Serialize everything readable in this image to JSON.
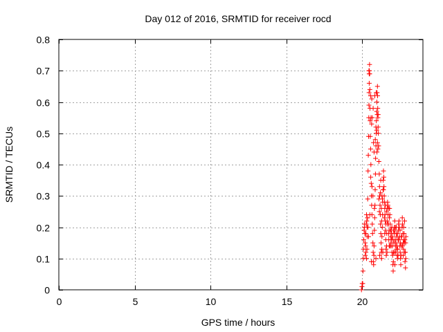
{
  "chart_data": {
    "type": "scatter",
    "title": "Day 012 of 2016, SRMTID for receiver rocd",
    "xlabel": "GPS time / hours",
    "ylabel": "SRMTID / TECUs",
    "xlim": [
      0,
      24
    ],
    "ylim": [
      0,
      0.8
    ],
    "xticks": [
      0,
      5,
      10,
      15,
      20
    ],
    "yticks": [
      0,
      0.1,
      0.2,
      0.3,
      0.4,
      0.5,
      0.6,
      0.7,
      0.8
    ],
    "ytick_labels": [
      "0",
      "0.1",
      "0.2",
      "0.3",
      "0.4",
      "0.5",
      "0.6",
      "0.7",
      "0.8"
    ],
    "grid": true,
    "marker": "+",
    "color": "#ff0000",
    "series": [
      {
        "name": "SRMTID",
        "points": [
          [
            19.95,
            0.0
          ],
          [
            19.98,
            0.01
          ],
          [
            20.0,
            0.02
          ],
          [
            20.03,
            0.02
          ],
          [
            20.05,
            0.06
          ],
          [
            20.07,
            0.1
          ],
          [
            20.08,
            0.13
          ],
          [
            20.1,
            0.16
          ],
          [
            20.12,
            0.19
          ],
          [
            20.14,
            0.21
          ],
          [
            20.15,
            0.2
          ],
          [
            20.17,
            0.18
          ],
          [
            20.19,
            0.15
          ],
          [
            20.2,
            0.11
          ],
          [
            20.22,
            0.14
          ],
          [
            20.24,
            0.18
          ],
          [
            20.26,
            0.21
          ],
          [
            20.28,
            0.24
          ],
          [
            20.3,
            0.22
          ],
          [
            20.32,
            0.2
          ],
          [
            20.33,
            0.17
          ],
          [
            20.35,
            0.23
          ],
          [
            20.36,
            0.29
          ],
          [
            20.38,
            0.38
          ],
          [
            20.4,
            0.43
          ],
          [
            20.42,
            0.49
          ],
          [
            20.43,
            0.55
          ],
          [
            20.44,
            0.59
          ],
          [
            20.45,
            0.63
          ],
          [
            20.46,
            0.66
          ],
          [
            20.47,
            0.7
          ],
          [
            20.48,
            0.72
          ],
          [
            20.49,
            0.69
          ],
          [
            20.5,
            0.64
          ],
          [
            20.51,
            0.58
          ],
          [
            20.52,
            0.54
          ],
          [
            20.53,
            0.49
          ],
          [
            20.55,
            0.45
          ],
          [
            20.57,
            0.4
          ],
          [
            20.59,
            0.34
          ],
          [
            20.6,
            0.3
          ],
          [
            20.62,
            0.27
          ],
          [
            20.64,
            0.24
          ],
          [
            20.66,
            0.21
          ],
          [
            20.68,
            0.18
          ],
          [
            20.7,
            0.15
          ],
          [
            20.72,
            0.12
          ],
          [
            20.73,
            0.09
          ],
          [
            20.75,
            0.08
          ],
          [
            20.77,
            0.11
          ],
          [
            20.78,
            0.14
          ],
          [
            20.8,
            0.19
          ],
          [
            20.82,
            0.23
          ],
          [
            20.84,
            0.27
          ],
          [
            20.85,
            0.32
          ],
          [
            20.87,
            0.37
          ],
          [
            20.88,
            0.42
          ],
          [
            20.9,
            0.46
          ],
          [
            20.92,
            0.5
          ],
          [
            20.93,
            0.54
          ],
          [
            20.95,
            0.57
          ],
          [
            20.96,
            0.6
          ],
          [
            20.98,
            0.63
          ],
          [
            21.0,
            0.65
          ],
          [
            21.01,
            0.62
          ],
          [
            21.02,
            0.58
          ],
          [
            21.03,
            0.55
          ],
          [
            21.05,
            0.52
          ],
          [
            21.06,
            0.5
          ],
          [
            21.08,
            0.46
          ],
          [
            21.1,
            0.41
          ],
          [
            21.12,
            0.37
          ],
          [
            21.14,
            0.33
          ],
          [
            21.15,
            0.3
          ],
          [
            21.17,
            0.27
          ],
          [
            21.19,
            0.24
          ],
          [
            21.2,
            0.21
          ],
          [
            21.22,
            0.18
          ],
          [
            21.24,
            0.15
          ],
          [
            21.25,
            0.12
          ],
          [
            21.27,
            0.1
          ],
          [
            21.29,
            0.13
          ],
          [
            21.3,
            0.17
          ],
          [
            21.32,
            0.2
          ],
          [
            21.34,
            0.24
          ],
          [
            21.35,
            0.28
          ],
          [
            21.37,
            0.32
          ],
          [
            21.38,
            0.35
          ],
          [
            21.4,
            0.38
          ],
          [
            21.42,
            0.36
          ],
          [
            21.43,
            0.33
          ],
          [
            21.45,
            0.3
          ],
          [
            21.47,
            0.28
          ],
          [
            21.48,
            0.26
          ],
          [
            21.5,
            0.24
          ],
          [
            21.52,
            0.22
          ],
          [
            21.54,
            0.19
          ],
          [
            21.55,
            0.16
          ],
          [
            21.57,
            0.13
          ],
          [
            21.58,
            0.11
          ],
          [
            21.6,
            0.14
          ],
          [
            21.62,
            0.18
          ],
          [
            21.64,
            0.22
          ],
          [
            21.65,
            0.26
          ],
          [
            21.67,
            0.28
          ],
          [
            21.69,
            0.27
          ],
          [
            21.7,
            0.24
          ],
          [
            21.72,
            0.21
          ],
          [
            21.74,
            0.18
          ],
          [
            21.75,
            0.16
          ],
          [
            21.77,
            0.19
          ],
          [
            21.79,
            0.23
          ],
          [
            21.8,
            0.26
          ],
          [
            21.82,
            0.24
          ],
          [
            21.84,
            0.21
          ],
          [
            21.85,
            0.19
          ],
          [
            21.87,
            0.17
          ],
          [
            21.89,
            0.15
          ],
          [
            21.9,
            0.14
          ],
          [
            21.92,
            0.16
          ],
          [
            21.94,
            0.18
          ],
          [
            21.95,
            0.2
          ],
          [
            21.97,
            0.17
          ],
          [
            21.99,
            0.14
          ],
          [
            22.0,
            0.11
          ],
          [
            22.02,
            0.08
          ],
          [
            22.04,
            0.06
          ],
          [
            22.05,
            0.09
          ],
          [
            22.07,
            0.12
          ],
          [
            22.09,
            0.15
          ],
          [
            22.1,
            0.18
          ],
          [
            22.12,
            0.2
          ],
          [
            22.14,
            0.22
          ],
          [
            22.15,
            0.19
          ],
          [
            22.17,
            0.16
          ],
          [
            22.19,
            0.14
          ],
          [
            22.2,
            0.12
          ],
          [
            22.22,
            0.15
          ],
          [
            22.24,
            0.18
          ],
          [
            22.25,
            0.2
          ],
          [
            22.27,
            0.17
          ],
          [
            22.29,
            0.14
          ],
          [
            22.3,
            0.11
          ],
          [
            22.32,
            0.1
          ],
          [
            22.34,
            0.13
          ],
          [
            22.36,
            0.16
          ],
          [
            22.38,
            0.19
          ],
          [
            22.4,
            0.21
          ],
          [
            22.42,
            0.22
          ],
          [
            22.44,
            0.2
          ],
          [
            22.46,
            0.17
          ],
          [
            22.48,
            0.14
          ],
          [
            22.5,
            0.12
          ],
          [
            22.52,
            0.1
          ],
          [
            22.54,
            0.08
          ],
          [
            22.56,
            0.11
          ],
          [
            22.58,
            0.14
          ],
          [
            22.6,
            0.17
          ],
          [
            22.62,
            0.2
          ],
          [
            22.64,
            0.23
          ],
          [
            22.66,
            0.21
          ],
          [
            22.68,
            0.18
          ],
          [
            22.7,
            0.15
          ],
          [
            22.72,
            0.13
          ],
          [
            22.74,
            0.16
          ],
          [
            22.76,
            0.18
          ],
          [
            22.78,
            0.15
          ],
          [
            22.8,
            0.12
          ],
          [
            22.82,
            0.09
          ],
          [
            22.84,
            0.12
          ],
          [
            22.86,
            0.15
          ],
          [
            22.88,
            0.17
          ],
          [
            20.44,
            0.7
          ],
          [
            20.46,
            0.69
          ],
          [
            20.58,
            0.55
          ],
          [
            20.62,
            0.53
          ],
          [
            20.66,
            0.55
          ],
          [
            20.74,
            0.47
          ],
          [
            20.78,
            0.44
          ],
          [
            20.86,
            0.48
          ],
          [
            20.9,
            0.52
          ],
          [
            20.97,
            0.44
          ],
          [
            21.03,
            0.45
          ],
          [
            20.55,
            0.62
          ],
          [
            20.63,
            0.61
          ],
          [
            20.72,
            0.58
          ],
          [
            20.82,
            0.62
          ],
          [
            20.92,
            0.63
          ],
          [
            21.05,
            0.56
          ],
          [
            20.35,
            0.23
          ],
          [
            20.38,
            0.2
          ],
          [
            20.42,
            0.17
          ],
          [
            20.5,
            0.24
          ],
          [
            20.56,
            0.36
          ],
          [
            20.64,
            0.33
          ],
          [
            20.7,
            0.3
          ],
          [
            20.8,
            0.26
          ],
          [
            21.1,
            0.29
          ],
          [
            21.13,
            0.25
          ],
          [
            21.2,
            0.31
          ],
          [
            21.26,
            0.26
          ],
          [
            21.33,
            0.29
          ],
          [
            21.4,
            0.32
          ],
          [
            21.46,
            0.23
          ],
          [
            21.53,
            0.27
          ],
          [
            21.6,
            0.25
          ],
          [
            21.68,
            0.21
          ],
          [
            21.75,
            0.26
          ],
          [
            21.83,
            0.14
          ],
          [
            21.9,
            0.19
          ],
          [
            22.03,
            0.16
          ],
          [
            22.11,
            0.12
          ],
          [
            22.18,
            0.2
          ],
          [
            22.26,
            0.13
          ],
          [
            22.33,
            0.18
          ],
          [
            22.41,
            0.16
          ],
          [
            22.49,
            0.19
          ],
          [
            22.57,
            0.17
          ],
          [
            22.65,
            0.14
          ],
          [
            22.73,
            0.2
          ],
          [
            22.81,
            0.16
          ],
          [
            22.87,
            0.1
          ],
          [
            20.24,
            0.12
          ],
          [
            20.28,
            0.1
          ],
          [
            20.31,
            0.13
          ],
          [
            20.6,
            0.09
          ],
          [
            20.9,
            0.1
          ],
          [
            21.15,
            0.11
          ],
          [
            21.36,
            0.12
          ],
          [
            21.48,
            0.18
          ],
          [
            21.56,
            0.21
          ],
          [
            21.63,
            0.12
          ],
          [
            21.78,
            0.14
          ],
          [
            21.96,
            0.12
          ],
          [
            22.06,
            0.19
          ],
          [
            22.15,
            0.08
          ],
          [
            22.36,
            0.11
          ],
          [
            22.52,
            0.15
          ],
          [
            22.7,
            0.11
          ],
          [
            22.79,
            0.22
          ],
          [
            22.85,
            0.07
          ],
          [
            21.3,
            0.3
          ],
          [
            21.22,
            0.35
          ],
          [
            21.28,
            0.22
          ],
          [
            20.99,
            0.56
          ],
          [
            20.95,
            0.51
          ],
          [
            21.0,
            0.47
          ]
        ]
      }
    ]
  }
}
